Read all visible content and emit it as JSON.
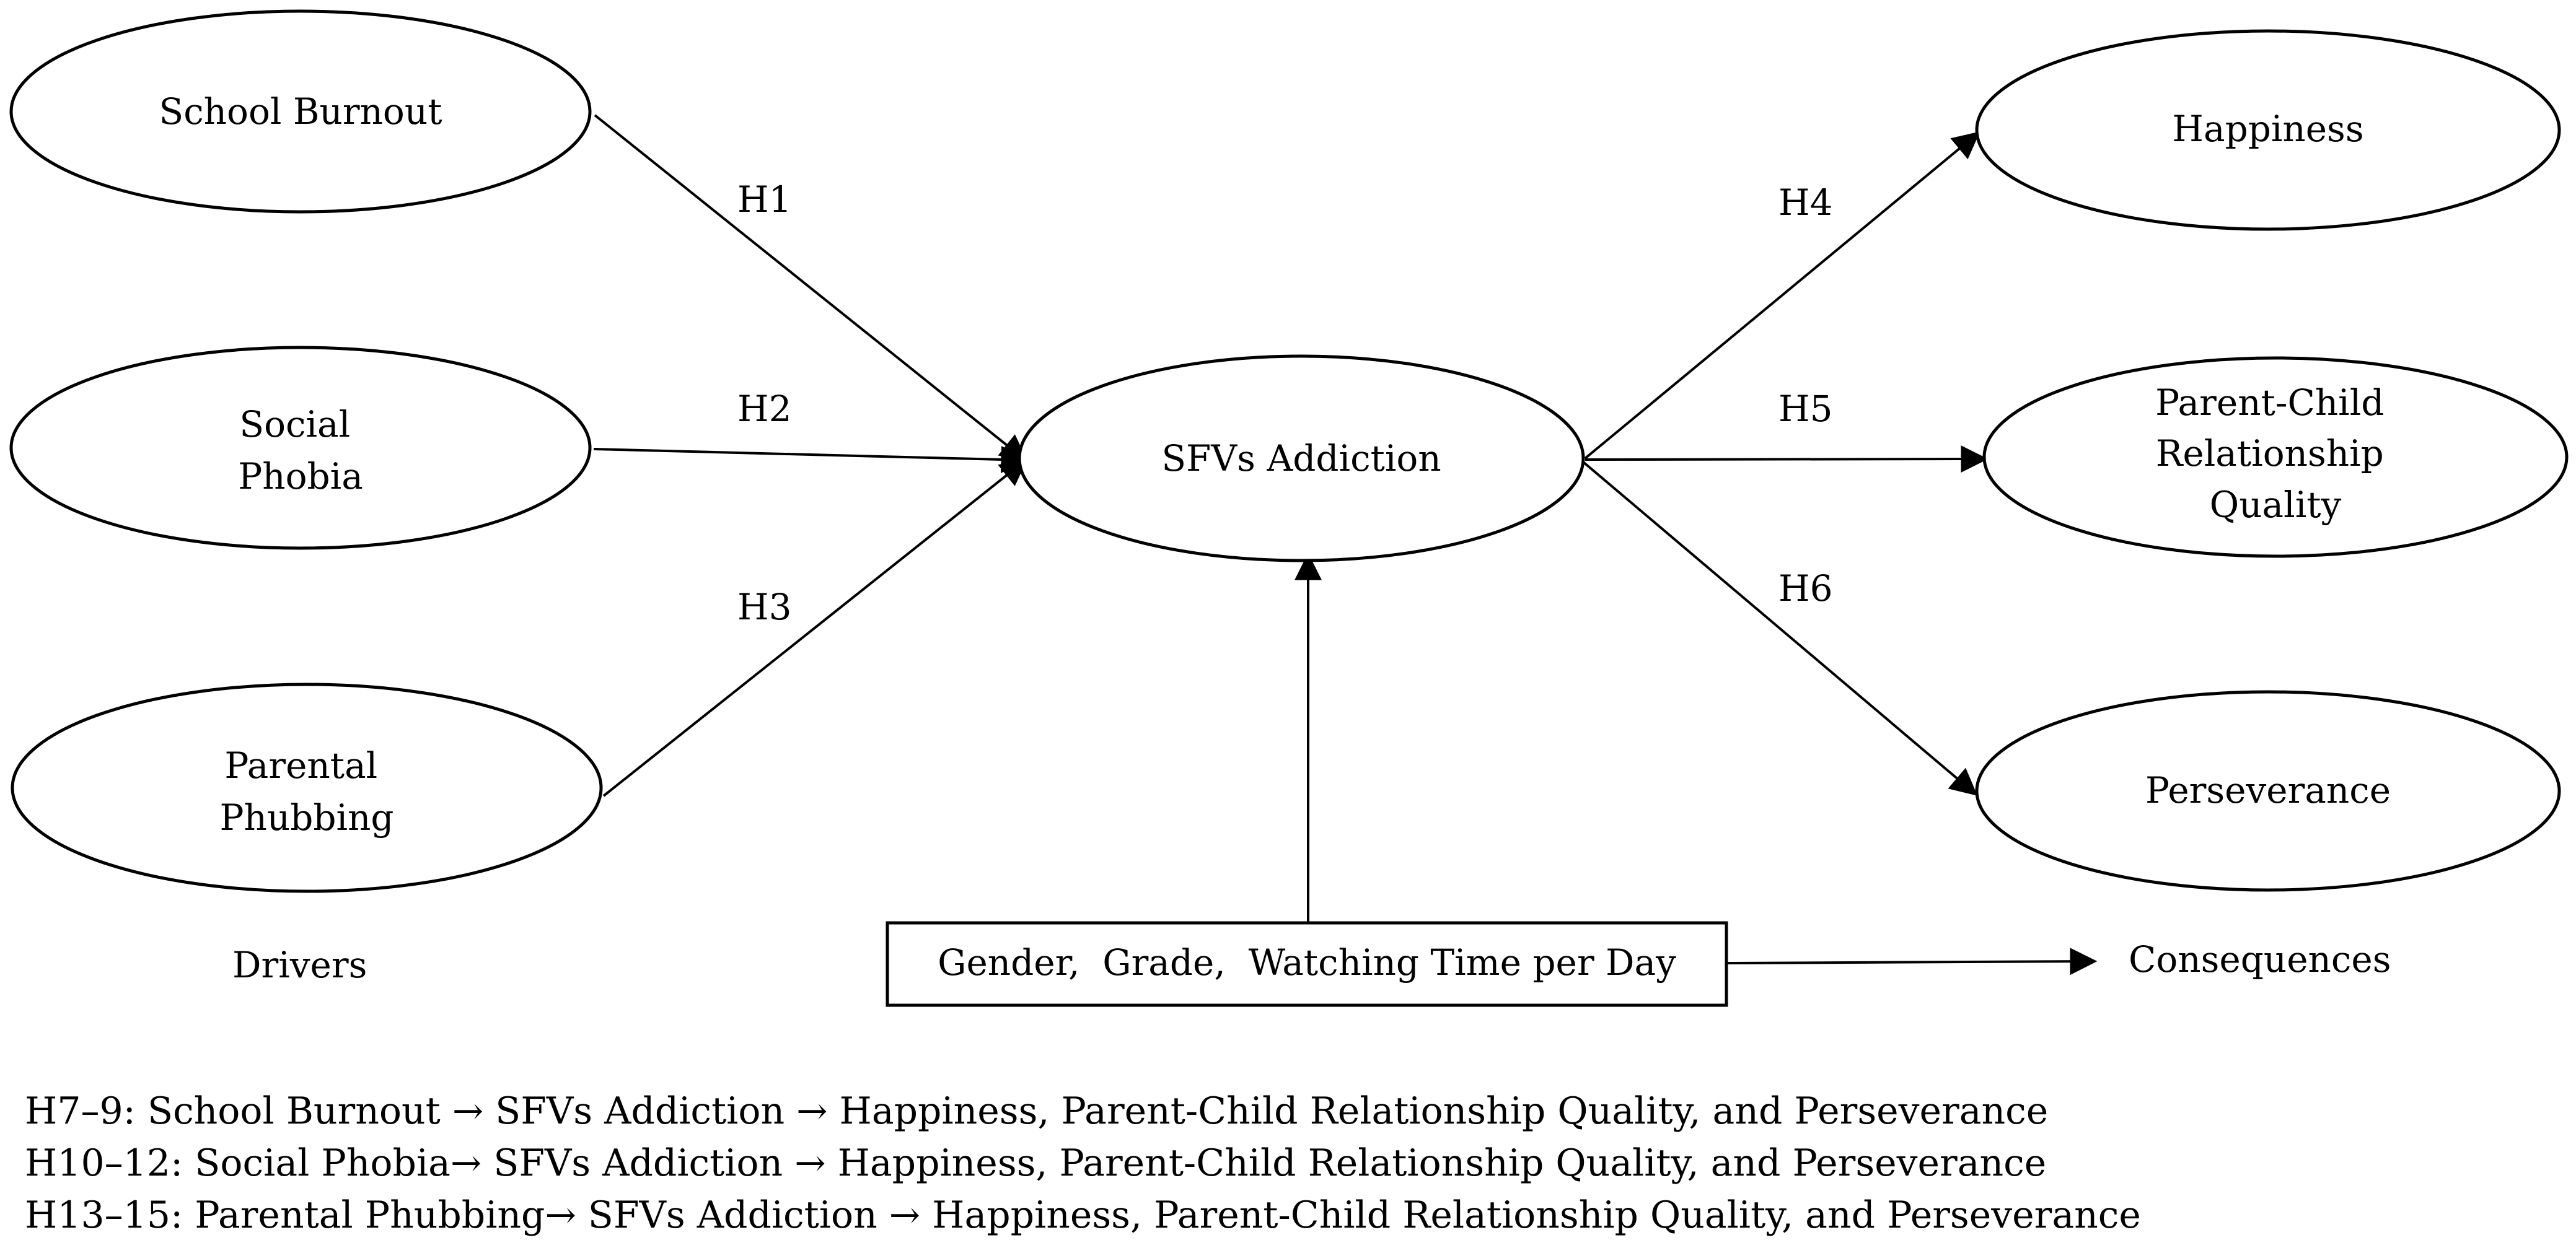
{
  "nodes": {
    "school_burnout": [
      "School Burnout"
    ],
    "social_phobia": [
      "Social",
      "Phobia"
    ],
    "parental_phubbing": [
      "Parental",
      "Phubbing"
    ],
    "sfvs_addiction": [
      "SFVs Addiction"
    ],
    "happiness": [
      "Happiness"
    ],
    "parent_child": [
      "Parent-Child",
      "Relationship",
      "Quality"
    ],
    "perseverance": [
      "Perseverance"
    ],
    "controls": [
      "Gender,  Grade,  Watching Time per Day"
    ]
  },
  "edges": {
    "h1": "H1",
    "h2": "H2",
    "h3": "H3",
    "h4": "H4",
    "h5": "H5",
    "h6": "H6"
  },
  "group_labels": {
    "drivers": "Drivers",
    "consequences": "Consequences"
  },
  "notes": [
    "H7–9: School Burnout → SFVs Addiction → Happiness,  Parent-Child Relationship Quality, and Perseverance",
    "H10–12: Social Phobia→ SFVs Addiction → Happiness, Parent-Child Relationship Quality, and Perseverance",
    "H13–15: Parental Phubbing→ SFVs Addiction → Happiness,  Parent-Child Relationship Quality, and Perseverance"
  ]
}
